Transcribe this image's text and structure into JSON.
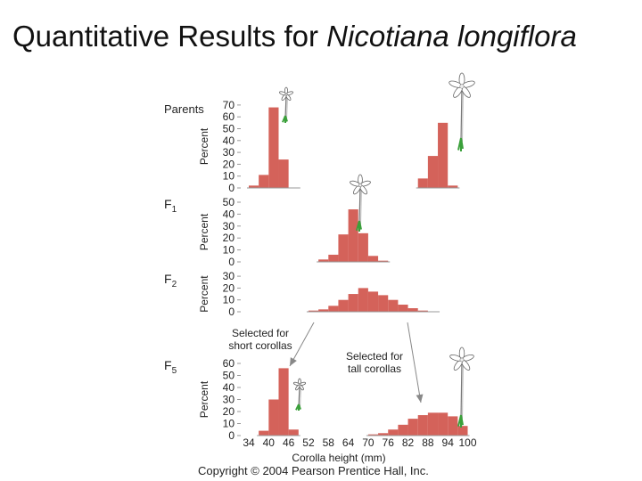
{
  "title": {
    "prefix": "Quantitative Results for ",
    "species": "Nicotiana longiflora"
  },
  "copyright": "Copyright © 2004 Pearson Prentice Hall, Inc.",
  "colors": {
    "bar": "#d4625a",
    "axis": "#999999",
    "arrow": "#888888",
    "flower_stem": "#3aa03a"
  },
  "chart_data": [
    {
      "type": "bar",
      "generation": "Parents",
      "ylabel": "Percent",
      "yticks": [
        0,
        10,
        20,
        30,
        40,
        50,
        60,
        70
      ],
      "ylim": [
        0,
        70
      ],
      "x": [
        34,
        37,
        40,
        43,
        46
      ],
      "values": [
        2,
        11,
        68,
        24,
        0
      ],
      "series2": {
        "x": [
          85,
          88,
          91,
          94
        ],
        "values": [
          8,
          27,
          55,
          2
        ]
      }
    },
    {
      "type": "bar",
      "generation": "F",
      "sub": "1",
      "ylabel": "Percent",
      "yticks": [
        0,
        10,
        20,
        30,
        40,
        50
      ],
      "ylim": [
        0,
        50
      ],
      "x": [
        55,
        58,
        61,
        64,
        67,
        70,
        73
      ],
      "values": [
        2,
        6,
        23,
        44,
        24,
        5,
        1
      ]
    },
    {
      "type": "bar",
      "generation": "F",
      "sub": "2",
      "ylabel": "Percent",
      "yticks": [
        0,
        10,
        20,
        30
      ],
      "ylim": [
        0,
        30
      ],
      "x": [
        52,
        55,
        58,
        61,
        64,
        67,
        70,
        73,
        76,
        79,
        82,
        85,
        88
      ],
      "values": [
        1,
        2,
        5,
        10,
        15,
        20,
        17,
        14,
        10,
        6,
        3,
        1,
        0
      ]
    },
    {
      "type": "bar",
      "generation": "F",
      "sub": "5",
      "ylabel": "Percent",
      "yticks": [
        0,
        10,
        20,
        30,
        40,
        50,
        60
      ],
      "ylim": [
        0,
        60
      ],
      "x": [
        37,
        40,
        43,
        46
      ],
      "values": [
        4,
        30,
        56,
        5
      ],
      "series2": {
        "x": [
          70,
          73,
          76,
          79,
          82,
          85,
          88,
          91,
          94,
          97
        ],
        "values": [
          1,
          2,
          5,
          9,
          14,
          17,
          19,
          19,
          16,
          8
        ]
      },
      "xlabel": "Corolla height (mm)",
      "xticks": [
        34,
        40,
        46,
        52,
        58,
        64,
        70,
        76,
        82,
        88,
        94,
        100
      ]
    }
  ],
  "annotations": {
    "short": [
      "Selected for",
      "short corollas"
    ],
    "tall": [
      "Selected for",
      "tall corollas"
    ]
  }
}
